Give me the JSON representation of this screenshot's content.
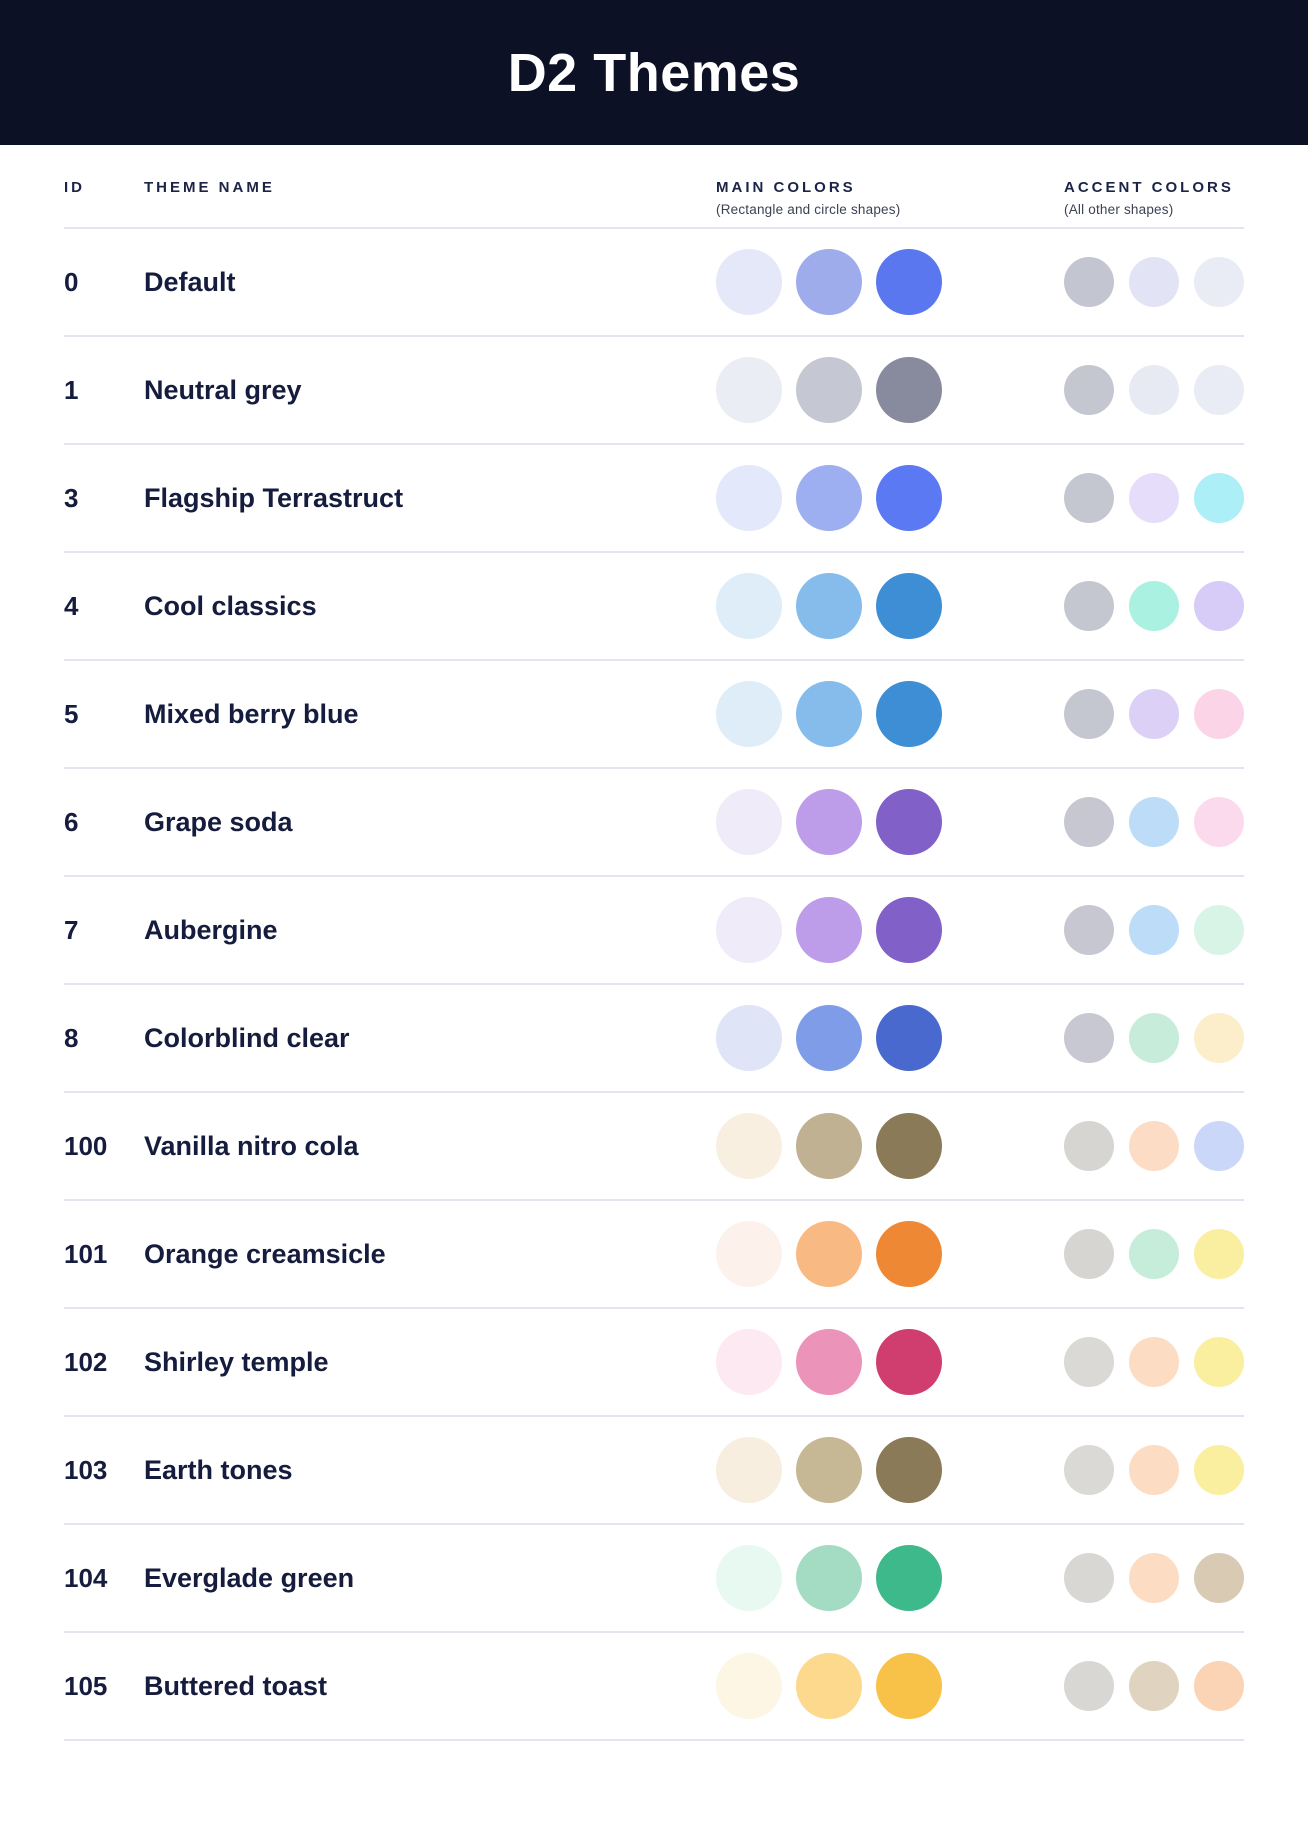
{
  "header": {
    "title": "D2 Themes"
  },
  "columns": {
    "id_label": "ID",
    "name_label": "THEME NAME",
    "main_label": "MAIN COLORS",
    "main_sublabel": "(Rectangle and circle shapes)",
    "accent_label": "ACCENT COLORS",
    "accent_sublabel": "(All other shapes)"
  },
  "theme_colors": {
    "header_bg": "#0D1126",
    "header_text": "#FFFFFF",
    "body_text": "#151C3D",
    "sublabel_text": "#3C4254",
    "divider": "#E2E5F0"
  },
  "rows": [
    {
      "id": "0",
      "name": "Default",
      "main": [
        "#E5E8F8",
        "#9FACEC",
        "#5B77EF"
      ],
      "accent": [
        "#C3C5D1",
        "#E2E4F6",
        "#E9EBF5"
      ]
    },
    {
      "id": "1",
      "name": "Neutral grey",
      "main": [
        "#EBEDF4",
        "#C5C8D2",
        "#888B9E"
      ],
      "accent": [
        "#C4C6D0",
        "#E7E9F3",
        "#E9EBF5"
      ]
    },
    {
      "id": "3",
      "name": "Flagship Terrastruct",
      "main": [
        "#E3E8FA",
        "#9DAFF0",
        "#5B79F2"
      ],
      "accent": [
        "#C4C6D0",
        "#E5DDF9",
        "#ACEFF6"
      ]
    },
    {
      "id": "4",
      "name": "Cool classics",
      "main": [
        "#DEEDF8",
        "#86BCEB",
        "#3E8ED5"
      ],
      "accent": [
        "#C5C7D0",
        "#ABF1E2",
        "#D6CCF7"
      ]
    },
    {
      "id": "5",
      "name": "Mixed berry blue",
      "main": [
        "#DEEDF8",
        "#86BCEB",
        "#3E8ED5"
      ],
      "accent": [
        "#C5C7D0",
        "#DCD0F6",
        "#FBD5E7"
      ]
    },
    {
      "id": "6",
      "name": "Grape soda",
      "main": [
        "#EFEBF9",
        "#BD9CE9",
        "#8160C8"
      ],
      "accent": [
        "#C6C7D0",
        "#BCDCF8",
        "#FBDAEE"
      ]
    },
    {
      "id": "7",
      "name": "Aubergine",
      "main": [
        "#EFEBF9",
        "#BD9CE9",
        "#8160C8"
      ],
      "accent": [
        "#C6C7D0",
        "#BCDCF8",
        "#D7F4E6"
      ]
    },
    {
      "id": "8",
      "name": "Colorblind clear",
      "main": [
        "#DFE5F7",
        "#7E9CE8",
        "#4A69CE"
      ],
      "accent": [
        "#C7C8D2",
        "#C7EDDA",
        "#FCEECB"
      ]
    },
    {
      "id": "100",
      "name": "Vanilla nitro cola",
      "main": [
        "#F8EFE1",
        "#C1B193",
        "#8A7A58"
      ],
      "accent": [
        "#D7D5D1",
        "#FCDCC4",
        "#CAD7F8"
      ]
    },
    {
      "id": "101",
      "name": "Orange creamsicle",
      "main": [
        "#FDF2EB",
        "#F9B983",
        "#EE8835"
      ],
      "accent": [
        "#D7D5D1",
        "#C6EDDA",
        "#FAEFA0"
      ]
    },
    {
      "id": "102",
      "name": "Shirley temple",
      "main": [
        "#FCE9F1",
        "#EC93BA",
        "#CF3E6F"
      ],
      "accent": [
        "#DBD9D5",
        "#FCDCC2",
        "#FAEF9E"
      ]
    },
    {
      "id": "103",
      "name": "Earth tones",
      "main": [
        "#F7EEDF",
        "#C6B795",
        "#8A7A57"
      ],
      "accent": [
        "#DBD9D5",
        "#FCDCC3",
        "#FAEF9E"
      ]
    },
    {
      "id": "104",
      "name": "Everglade green",
      "main": [
        "#E8F9F1",
        "#A4DCC3",
        "#3EB98B"
      ],
      "accent": [
        "#D9D7D3",
        "#FCDCC3",
        "#D9CAB4"
      ]
    },
    {
      "id": "105",
      "name": "Buttered toast",
      "main": [
        "#FDF6E4",
        "#FCD98C",
        "#F8C148"
      ],
      "accent": [
        "#D9D7D3",
        "#E0D4C0",
        "#FBD4B6"
      ]
    }
  ]
}
